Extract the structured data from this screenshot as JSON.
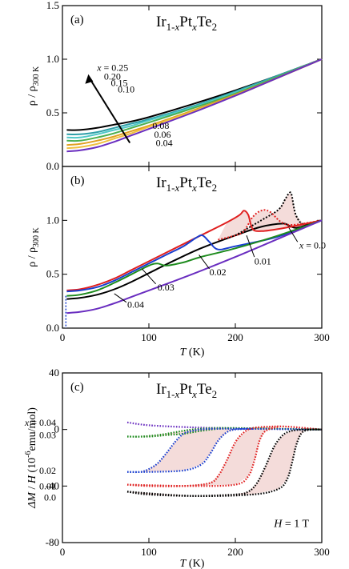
{
  "chart_data": [
    {
      "type": "line",
      "panel_label": "(a)",
      "title": {
        "base": "Ir",
        "sub1": "1-",
        "subx": "x",
        "mid": "Pt",
        "subx2": "x",
        "end": "Te",
        "sub2": "2"
      },
      "ylabel": {
        "main": "ρ / ρ",
        "sub": "300 K"
      },
      "xlim": [
        0,
        300
      ],
      "ylim": [
        0,
        1.5
      ],
      "yticks": [
        "0.0",
        "0.5",
        "1.0",
        "1.5"
      ],
      "series": [
        {
          "name": "x = 0.25",
          "color": "#000000",
          "x": [
            5,
            20,
            40,
            60,
            80,
            100,
            150,
            200,
            250,
            300
          ],
          "y": [
            0.34,
            0.34,
            0.36,
            0.39,
            0.42,
            0.46,
            0.58,
            0.71,
            0.85,
            1.0
          ]
        },
        {
          "name": "0.20",
          "color": "#2e9fa8",
          "x": [
            5,
            20,
            40,
            60,
            80,
            100,
            150,
            200,
            250,
            300
          ],
          "y": [
            0.3,
            0.3,
            0.32,
            0.36,
            0.4,
            0.44,
            0.56,
            0.7,
            0.85,
            1.0
          ]
        },
        {
          "name": "0.15",
          "color": "#4fc8c8",
          "x": [
            5,
            20,
            40,
            60,
            80,
            100,
            150,
            200,
            250,
            300
          ],
          "y": [
            0.27,
            0.27,
            0.3,
            0.34,
            0.38,
            0.43,
            0.55,
            0.69,
            0.84,
            1.0
          ]
        },
        {
          "name": "0.10",
          "color": "#4caf50",
          "x": [
            5,
            20,
            40,
            60,
            80,
            100,
            150,
            200,
            250,
            300
          ],
          "y": [
            0.24,
            0.24,
            0.27,
            0.31,
            0.36,
            0.41,
            0.54,
            0.68,
            0.84,
            1.0
          ]
        },
        {
          "name": "0.08",
          "color": "#e0a020",
          "x": [
            5,
            20,
            40,
            60,
            80,
            100,
            150,
            200,
            250,
            300
          ],
          "y": [
            0.2,
            0.21,
            0.24,
            0.28,
            0.33,
            0.38,
            0.52,
            0.67,
            0.83,
            1.0
          ]
        },
        {
          "name": "0.06",
          "color": "#f0c040",
          "x": [
            5,
            20,
            40,
            60,
            80,
            100,
            150,
            200,
            250,
            300
          ],
          "y": [
            0.17,
            0.18,
            0.21,
            0.26,
            0.31,
            0.37,
            0.51,
            0.66,
            0.83,
            1.0
          ]
        },
        {
          "name": "0.04",
          "color": "#6a2ec0",
          "x": [
            5,
            20,
            40,
            60,
            80,
            100,
            150,
            200,
            250,
            300
          ],
          "y": [
            0.14,
            0.15,
            0.18,
            0.23,
            0.29,
            0.35,
            0.5,
            0.66,
            0.83,
            1.0
          ]
        }
      ],
      "arrow_label": {
        "pre": "x",
        "post": " = 0.25"
      },
      "series_labels": [
        "0.20",
        "0.15",
        "0.10",
        "0.08",
        "0.06",
        "0.04"
      ]
    },
    {
      "type": "line",
      "panel_label": "(b)",
      "title": {
        "base": "Ir",
        "sub1": "1-",
        "subx": "x",
        "mid": "Pt",
        "subx2": "x",
        "end": "Te",
        "sub2": "2"
      },
      "ylabel": {
        "main": "ρ / ρ",
        "sub": "300 K"
      },
      "xlabel": {
        "main": "T",
        "unit": " (K)"
      },
      "xlim": [
        0,
        300
      ],
      "ylim": [
        0,
        1.5
      ],
      "xticks": [
        "0",
        "100",
        "200",
        "300"
      ],
      "yticks": [
        "0.0",
        "0.5",
        "1.0"
      ],
      "series": [
        {
          "name": "x = 0.0",
          "color": "#000000",
          "x": [
            5,
            20,
            40,
            60,
            80,
            100,
            130,
            160,
            200,
            230,
            255,
            262,
            270,
            280,
            290,
            300
          ],
          "y": [
            0.27,
            0.28,
            0.31,
            0.36,
            0.43,
            0.51,
            0.63,
            0.74,
            0.86,
            0.94,
            0.97,
            0.95,
            0.93,
            0.95,
            0.98,
            1.0
          ],
          "hyst_x": [
            200,
            230,
            250,
            258,
            262,
            265,
            270,
            280,
            300
          ],
          "hyst_y": [
            0.86,
            1.0,
            1.1,
            1.2,
            1.25,
            1.24,
            1.05,
            0.96,
            1.0
          ]
        },
        {
          "name": "0.01",
          "color": "#e02020",
          "x": [
            5,
            20,
            40,
            60,
            80,
            100,
            130,
            160,
            190,
            205,
            210,
            215,
            220,
            230,
            250,
            270,
            300
          ],
          "y": [
            0.35,
            0.36,
            0.4,
            0.46,
            0.54,
            0.62,
            0.74,
            0.86,
            0.98,
            1.05,
            1.09,
            1.05,
            0.92,
            0.9,
            0.92,
            0.95,
            1.0
          ],
          "hyst_x": [
            180,
            200,
            210,
            220,
            230,
            240,
            260,
            300
          ],
          "hyst_y": [
            0.82,
            0.86,
            0.9,
            1.03,
            1.09,
            1.08,
            0.96,
            1.0
          ]
        },
        {
          "name": "0.02",
          "color": "#1a3fd0",
          "x": [
            5,
            20,
            40,
            60,
            80,
            100,
            120,
            140,
            155,
            162,
            170,
            180,
            200,
            250,
            300
          ],
          "y": [
            0.34,
            0.35,
            0.38,
            0.44,
            0.52,
            0.6,
            0.68,
            0.76,
            0.84,
            0.86,
            0.8,
            0.73,
            0.76,
            0.85,
            1.0
          ]
        },
        {
          "name": "0.03",
          "color": "#1f8c1f",
          "x": [
            5,
            20,
            40,
            60,
            80,
            100,
            110,
            120,
            140,
            160,
            200,
            250,
            300
          ],
          "y": [
            0.3,
            0.31,
            0.35,
            0.42,
            0.5,
            0.58,
            0.6,
            0.58,
            0.61,
            0.66,
            0.74,
            0.86,
            1.0
          ]
        },
        {
          "name": "0.04",
          "color": "#6a2ec0",
          "x": [
            5,
            20,
            40,
            60,
            80,
            100,
            150,
            200,
            250,
            300
          ],
          "y": [
            0.14,
            0.15,
            0.18,
            0.23,
            0.29,
            0.35,
            0.5,
            0.66,
            0.83,
            1.0
          ]
        }
      ],
      "labels": [
        {
          "pre": "x",
          "post": " = 0.0"
        },
        {
          "pre": "",
          "post": "0.01"
        },
        {
          "pre": "",
          "post": "0.02"
        },
        {
          "pre": "",
          "post": "0.03"
        },
        {
          "pre": "",
          "post": "0.04"
        }
      ]
    },
    {
      "type": "scatter",
      "panel_label": "(c)",
      "title": {
        "base": "Ir",
        "sub1": "1-",
        "subx": "x",
        "mid": "Pt",
        "subx2": "x",
        "end": "Te",
        "sub2": "2"
      },
      "ylabel": {
        "pre": "Δ",
        "m": "M",
        "slash": " / ",
        "h": "H",
        "unit": " (10",
        "exp": "-6",
        "unit2": "emu/mol)"
      },
      "xlabel": {
        "main": "T",
        "unit": " (K)"
      },
      "field_label": {
        "h": "H",
        "rest": " = 1 T"
      },
      "xlim": [
        0,
        300
      ],
      "ylim": [
        -80,
        40
      ],
      "xticks": [
        "0",
        "100",
        "200",
        "300"
      ],
      "yticks": [
        "-80",
        "-40",
        "0",
        "40"
      ],
      "series": [
        {
          "name": "x = 0.04",
          "color": "#6a2ec0",
          "x": [
            75,
            100,
            150,
            200,
            250,
            300
          ],
          "y": [
            5,
            3,
            1.5,
            0.8,
            0.3,
            0
          ],
          "hyst_x": [],
          "hyst_y": []
        },
        {
          "name": "0.03",
          "color": "#1f8c1f",
          "x": [
            75,
            90,
            110,
            130,
            150,
            175,
            200,
            250,
            300
          ],
          "y": [
            -5,
            -5,
            -4,
            -2,
            0,
            1,
            1,
            0.5,
            0
          ],
          "hyst_x": [
            75,
            100,
            120,
            140,
            160,
            180,
            200
          ],
          "hyst_y": [
            -5,
            -5,
            -4,
            -3,
            -1,
            0.5,
            1
          ]
        },
        {
          "name": "0.02",
          "color": "#1a3fd0",
          "x": [
            75,
            90,
            100,
            110,
            120,
            130,
            140,
            150,
            160,
            175,
            200,
            250,
            300
          ],
          "y": [
            -30,
            -30,
            -28,
            -24,
            -17,
            -9,
            -3,
            -1,
            0,
            0.5,
            0.5,
            0.3,
            0
          ],
          "hyst_x": [
            75,
            100,
            140,
            160,
            170,
            180,
            190,
            200,
            220
          ],
          "hyst_y": [
            -30,
            -30,
            -29,
            -25,
            -18,
            -8,
            -2,
            0,
            0.5
          ]
        },
        {
          "name": "0.01",
          "color": "#e02020",
          "x": [
            75,
            100,
            140,
            170,
            180,
            190,
            200,
            210,
            220,
            240,
            260,
            300
          ],
          "y": [
            -39,
            -40,
            -40,
            -38,
            -33,
            -22,
            -9,
            -2,
            1,
            2,
            2,
            0
          ],
          "hyst_x": [
            75,
            150,
            200,
            215,
            222,
            228,
            235,
            250
          ],
          "hyst_y": [
            -39,
            -40,
            -39,
            -33,
            -22,
            -8,
            -1,
            2
          ]
        },
        {
          "name": "0.0",
          "color": "#000000",
          "x": [
            75,
            100,
            150,
            200,
            215,
            225,
            235,
            245,
            255,
            265,
            280,
            300
          ],
          "y": [
            -44,
            -46,
            -47,
            -46,
            -44,
            -38,
            -26,
            -12,
            -4,
            -1,
            0,
            0
          ],
          "hyst_x": [
            75,
            150,
            220,
            250,
            260,
            265,
            270,
            275,
            280,
            290,
            300
          ],
          "hyst_y": [
            -44,
            -47,
            -46,
            -42,
            -35,
            -25,
            -12,
            -4,
            -1,
            0,
            0
          ]
        }
      ],
      "labels": [
        {
          "pre": "x",
          "post": " = 0.04"
        },
        {
          "pre": "",
          "post": "0.03"
        },
        {
          "pre": "",
          "post": "0.02"
        },
        {
          "pre": "",
          "post": "0.01"
        },
        {
          "pre": "",
          "post": "0.0"
        }
      ]
    }
  ]
}
